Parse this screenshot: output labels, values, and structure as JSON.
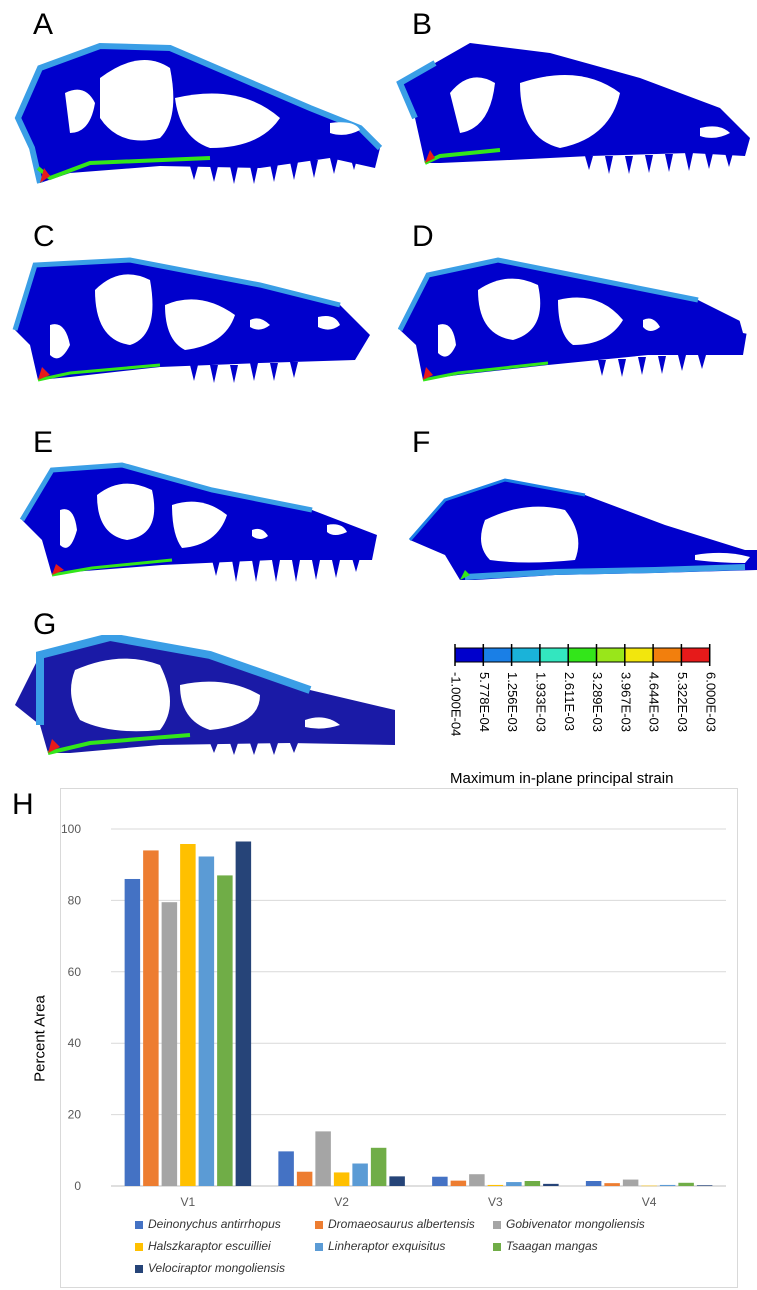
{
  "panels": [
    "A",
    "B",
    "C",
    "D",
    "E",
    "F",
    "G",
    "H"
  ],
  "strain_legend": {
    "title": "Maximum in-plane principal strain",
    "ticks": [
      "-1.000E-04",
      "5.778E-04",
      "1.256E-03",
      "1.933E-03",
      "2.611E-03",
      "3.289E-03",
      "3.967E-03",
      "4.644E-03",
      "5.322E-03",
      "6.000E-03"
    ],
    "colors": [
      "#0000cc",
      "#1a7fe6",
      "#1ab3d9",
      "#33e6bf",
      "#33e61a",
      "#99e61a",
      "#f2e60d",
      "#f27f0d",
      "#e61a1a"
    ]
  },
  "chart_data": {
    "type": "bar",
    "categories": [
      "V1",
      "V2",
      "V3",
      "V4"
    ],
    "ylabel": "Percent Area",
    "ylim": [
      0,
      100
    ],
    "yticks": [
      0,
      20,
      40,
      60,
      80,
      100
    ],
    "grid": true,
    "legend_position": "bottom",
    "series": [
      {
        "name": "Deinonychus antirrhopus",
        "color": "#4472c4",
        "values": [
          86,
          9.7,
          2.6,
          1.4
        ]
      },
      {
        "name": "Dromaeosaurus albertensis",
        "color": "#ed7d31",
        "values": [
          94,
          4,
          1.5,
          0.8
        ]
      },
      {
        "name": "Gobivenator mongoliensis",
        "color": "#a5a5a5",
        "values": [
          79.5,
          15.3,
          3.3,
          1.8
        ]
      },
      {
        "name": "Halszkaraptor escuilliei",
        "color": "#ffc000",
        "values": [
          95.8,
          3.8,
          0.3,
          0.1
        ]
      },
      {
        "name": "Linheraptor exquisitus",
        "color": "#5b9bd5",
        "values": [
          92.3,
          6.3,
          1.1,
          0.3
        ]
      },
      {
        "name": "Tsaagan mangas",
        "color": "#70ad47",
        "values": [
          87,
          10.7,
          1.4,
          0.9
        ]
      },
      {
        "name": "Velociraptor mongoliensis",
        "color": "#264478",
        "values": [
          96.5,
          2.7,
          0.6,
          0.2
        ]
      }
    ]
  }
}
